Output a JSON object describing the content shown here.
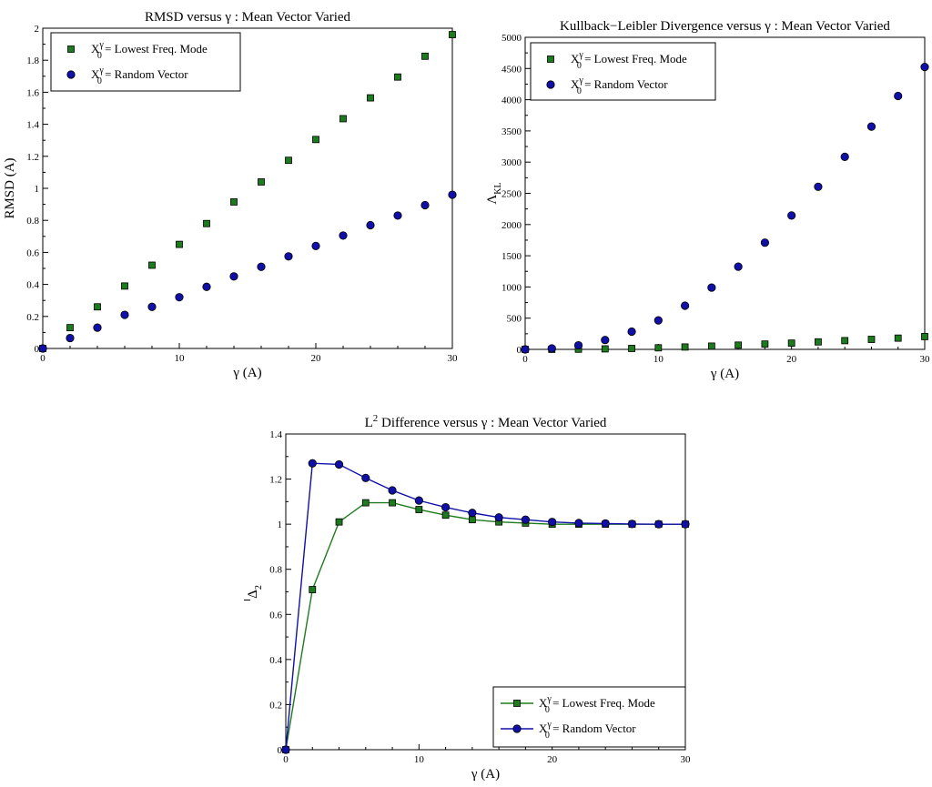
{
  "chart_data": [
    {
      "id": "rmsd",
      "type": "scatter",
      "title": "RMSD versus γ : Mean Vector Varied",
      "xlabel": "γ (A)",
      "ylabel": "RMSD (A)",
      "xlim": [
        0,
        30
      ],
      "ylim": [
        0,
        2
      ],
      "xticks": [
        "0",
        "10",
        "20",
        "30"
      ],
      "yticks": [
        "0",
        "0.2",
        "0.4",
        "0.6",
        "0.8",
        "1",
        "1.2",
        "1.4",
        "1.6",
        "1.8",
        "2"
      ],
      "legend_position": "top-left",
      "x": [
        0,
        2,
        4,
        6,
        8,
        10,
        12,
        14,
        16,
        18,
        20,
        22,
        24,
        26,
        28,
        30
      ],
      "series": [
        {
          "name": "X0γ = Lowest Freq. Mode",
          "label_main": "X",
          "label_sup": "γ",
          "label_sub": "0",
          "label_rest": " = Lowest Freq. Mode",
          "marker": "square",
          "color": "#1e7a1e",
          "line": false,
          "values": [
            0,
            0.13,
            0.26,
            0.39,
            0.52,
            0.65,
            0.78,
            0.915,
            1.04,
            1.175,
            1.305,
            1.435,
            1.565,
            1.695,
            1.825,
            1.96
          ]
        },
        {
          "name": "X0γ = Random Vector",
          "label_main": "X",
          "label_sup": "γ",
          "label_sub": "0",
          "label_rest": " = Random Vector",
          "marker": "circle",
          "color": "#1010a8",
          "line": false,
          "values": [
            0,
            0.065,
            0.13,
            0.21,
            0.26,
            0.32,
            0.385,
            0.45,
            0.51,
            0.575,
            0.64,
            0.705,
            0.77,
            0.83,
            0.895,
            0.96
          ]
        }
      ]
    },
    {
      "id": "kl",
      "type": "scatter",
      "title": "Kullback−Leibler Divergence versus γ : Mean Vector Varied",
      "xlabel": "γ (A)",
      "ylabel": "Λ",
      "ylabel_sub": "KL",
      "xlim": [
        0,
        30
      ],
      "ylim": [
        0,
        5000
      ],
      "xticks": [
        "0",
        "10",
        "20",
        "30"
      ],
      "yticks": [
        "0",
        "500",
        "1000",
        "1500",
        "2000",
        "2500",
        "3000",
        "3500",
        "4000",
        "4500",
        "5000"
      ],
      "legend_position": "top-left",
      "x": [
        0,
        2,
        4,
        6,
        8,
        10,
        12,
        14,
        16,
        18,
        20,
        22,
        24,
        26,
        28,
        30
      ],
      "series": [
        {
          "name": "X0γ = Lowest Freq. Mode",
          "label_main": "X",
          "label_sup": "γ",
          "label_sub": "0",
          "label_rest": " = Lowest Freq. Mode",
          "marker": "square",
          "color": "#1e7a1e",
          "line": false,
          "values": [
            0,
            1,
            3,
            8,
            15,
            25,
            38,
            52,
            68,
            85,
            100,
            120,
            140,
            160,
            180,
            205
          ]
        },
        {
          "name": "X0γ = Random Vector",
          "label_main": "X",
          "label_sup": "γ",
          "label_sub": "0",
          "label_rest": " = Random Vector",
          "marker": "circle",
          "color": "#1010a8",
          "line": false,
          "values": [
            0,
            15,
            65,
            150,
            285,
            465,
            700,
            990,
            1325,
            1710,
            2145,
            2605,
            3085,
            3570,
            4060,
            4525
          ]
        }
      ]
    },
    {
      "id": "l2",
      "type": "line",
      "title_main": "L",
      "title_sup": "2",
      "title_rest": " Difference versus γ : Mean Vector Varied",
      "xlabel": "γ (A)",
      "ylabel": "Δ",
      "ylabel_sub": "2",
      "xlim": [
        0,
        30
      ],
      "ylim": [
        0,
        1.4
      ],
      "xticks": [
        "0",
        "10",
        "20",
        "30"
      ],
      "yticks": [
        "0",
        "0.2",
        "0.4",
        "0.6",
        "0.8",
        "1",
        "1.2",
        "1.4"
      ],
      "legend_position": "bottom-right",
      "x": [
        0,
        2,
        4,
        6,
        8,
        10,
        12,
        14,
        16,
        18,
        20,
        22,
        24,
        26,
        28,
        30
      ],
      "series": [
        {
          "name": "X0γ = Lowest Freq. Mode",
          "label_main": "X",
          "label_sup": "γ",
          "label_sub": "0",
          "label_rest": " = Lowest Freq. Mode",
          "marker": "square",
          "color": "#1e7a1e",
          "line": true,
          "values": [
            0,
            0.71,
            1.01,
            1.095,
            1.095,
            1.065,
            1.04,
            1.02,
            1.01,
            1.005,
            1.0,
            1.0,
            1.0,
            1.0,
            1.0,
            1.0
          ]
        },
        {
          "name": "X0γ = Random Vector",
          "label_main": "X",
          "label_sup": "γ",
          "label_sub": "0",
          "label_rest": " = Random Vector",
          "marker": "circle",
          "color": "#1010a8",
          "line": true,
          "values": [
            0,
            1.27,
            1.265,
            1.205,
            1.15,
            1.105,
            1.075,
            1.05,
            1.03,
            1.02,
            1.01,
            1.005,
            1.003,
            1.001,
            1.0,
            1.0
          ]
        }
      ]
    }
  ]
}
